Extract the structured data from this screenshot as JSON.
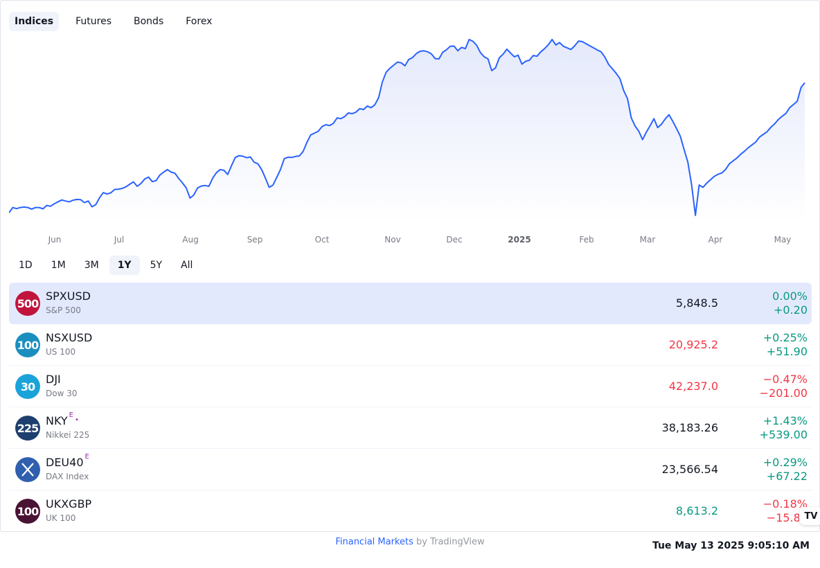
{
  "tabs": [
    {
      "label": "Indices",
      "active": true
    },
    {
      "label": "Futures",
      "active": false
    },
    {
      "label": "Bonds",
      "active": false
    },
    {
      "label": "Forex",
      "active": false
    }
  ],
  "ranges": [
    {
      "label": "1D",
      "active": false
    },
    {
      "label": "1M",
      "active": false
    },
    {
      "label": "3M",
      "active": false
    },
    {
      "label": "1Y",
      "active": true
    },
    {
      "label": "5Y",
      "active": false
    },
    {
      "label": "All",
      "active": false
    }
  ],
  "chart_data": {
    "type": "area",
    "series": [
      {
        "color": "#2962ff",
        "fill": "#eef1fc",
        "values": [
          0.1,
          0.3,
          0.26,
          0.3,
          0.32,
          0.3,
          0.24,
          0.3,
          0.3,
          0.25,
          0.38,
          0.35,
          0.44,
          0.52,
          0.59,
          0.55,
          0.52,
          0.58,
          0.61,
          0.6,
          0.49,
          0.55,
          0.33,
          0.41,
          0.67,
          0.87,
          0.82,
          0.86,
          0.99,
          1.0,
          1.03,
          1.09,
          1.19,
          1.28,
          1.11,
          1.22,
          1.39,
          1.46,
          1.29,
          1.33,
          1.54,
          1.65,
          1.75,
          1.65,
          1.61,
          1.41,
          1.24,
          1.05,
          0.66,
          0.78,
          1.05,
          1.12,
          1.14,
          1.11,
          1.42,
          1.63,
          1.75,
          1.72,
          1.56,
          1.9,
          2.21,
          2.28,
          2.26,
          2.2,
          2.23,
          2.03,
          1.97,
          1.75,
          1.42,
          1.07,
          1.16,
          1.45,
          1.76,
          2.17,
          2.22,
          2.21,
          2.25,
          2.27,
          2.44,
          2.79,
          3.07,
          3.14,
          3.21,
          3.39,
          3.46,
          3.43,
          3.51,
          3.72,
          3.69,
          3.77,
          3.91,
          3.88,
          3.94,
          4.07,
          4.04,
          4.17,
          4.11,
          4.22,
          4.49,
          5.09,
          5.46,
          5.61,
          5.73,
          5.85,
          5.82,
          5.71,
          5.95,
          6.02,
          6.17,
          6.26,
          6.28,
          6.24,
          6.16,
          5.98,
          5.97,
          6.22,
          6.32,
          6.45,
          6.46,
          6.28,
          6.41,
          6.36,
          6.71,
          6.64,
          6.49,
          6.21,
          6.05,
          5.97,
          5.52,
          5.63,
          6.01,
          6.15,
          6.34,
          6.19,
          6.05,
          6.11,
          5.77,
          5.88,
          5.92,
          6.1,
          6.07,
          6.24,
          6.36,
          6.51,
          6.71,
          6.5,
          6.59,
          6.45,
          6.39,
          6.33,
          6.47,
          6.65,
          6.63,
          6.55,
          6.47,
          6.39,
          6.31,
          6.24,
          6.04,
          5.76,
          5.59,
          5.42,
          5.21,
          4.76,
          4.45,
          3.72,
          3.41,
          3.21,
          2.89,
          3.18,
          3.42,
          3.69,
          3.35,
          3.48,
          3.68,
          3.84,
          3.59,
          3.31,
          3.02,
          2.52,
          2.03,
          1.17,
          0.0,
          1.16,
          1.07,
          1.23,
          1.36,
          1.49,
          1.57,
          1.62,
          1.75,
          1.97,
          2.08,
          2.19,
          2.33,
          2.45,
          2.58,
          2.69,
          2.8,
          2.99,
          3.09,
          3.19,
          3.36,
          3.49,
          3.66,
          3.78,
          3.89,
          4.11,
          4.23,
          4.35,
          4.88,
          5.06
        ],
        "note": "values are % changes, rough shape of a rising 1Y index series"
      }
    ],
    "x_ticks": [
      "Jun",
      "Jul",
      "Aug",
      "Sep",
      "Oct",
      "Nov",
      "Dec",
      "2025",
      "Feb",
      "Mar",
      "Apr",
      "May"
    ],
    "grid": false
  },
  "rows": [
    {
      "logo": "500",
      "logo_color": "#c0143c",
      "symbol": "SPXUSD",
      "sup": "",
      "dot": "",
      "desc": "S&P 500",
      "price": "5,848.5",
      "price_dir": "neutral",
      "pct": "0.00%",
      "abs": "+0.20",
      "dir": "up",
      "selected": true
    },
    {
      "logo": "100",
      "logo_color": "#1a8fbf",
      "symbol": "NSXUSD",
      "sup": "",
      "dot": "",
      "desc": "US 100",
      "price": "20,925.2",
      "price_dir": "down",
      "pct": "+0.25%",
      "abs": "+51.90",
      "dir": "up",
      "selected": false
    },
    {
      "logo": "30",
      "logo_color": "#1aa3d8",
      "symbol": "DJI",
      "sup": "",
      "dot": "",
      "desc": "Dow 30",
      "price": "42,237.0",
      "price_dir": "down",
      "pct": "−0.47%",
      "abs": "−201.00",
      "dir": "down",
      "selected": false
    },
    {
      "logo": "225",
      "logo_color": "#1e3f6e",
      "symbol": "NKY",
      "sup": "E",
      "dot": "•",
      "desc": "Nikkei 225",
      "price": "38,183.26",
      "price_dir": "neutral",
      "pct": "+1.43%",
      "abs": "+539.00",
      "dir": "up",
      "selected": false
    },
    {
      "logo": "",
      "logo_color": "#2f5fae",
      "symbol": "DEU40",
      "sup": "E",
      "dot": "",
      "desc": "DAX Index",
      "price": "23,566.54",
      "price_dir": "neutral",
      "pct": "+0.29%",
      "abs": "+67.22",
      "dir": "up",
      "selected": false
    },
    {
      "logo": "100",
      "logo_color": "#4a1333",
      "symbol": "UKXGBP",
      "sup": "",
      "dot": "",
      "desc": "UK 100",
      "price": "8,613.2",
      "price_dir": "up",
      "pct": "−0.18%",
      "abs": "−15.80",
      "dir": "down",
      "selected": false
    }
  ],
  "footer": {
    "link": "Financial Markets",
    "by": " by TradingView"
  },
  "timestamp": "Tue May 13 2025 9:05:10 AM",
  "badge": "TV"
}
